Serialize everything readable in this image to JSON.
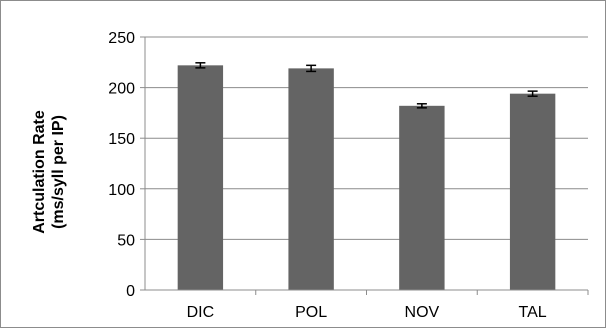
{
  "chart_data": {
    "type": "bar",
    "title": "",
    "xlabel": "",
    "ylabel_line1": "Artculation Rate",
    "ylabel_line2": "(ms/syll per IP)",
    "categories": [
      "DIC",
      "POL",
      "NOV",
      "TAL"
    ],
    "series": [
      {
        "values": [
          222,
          219,
          182,
          194
        ],
        "errors": [
          2.5,
          3,
          2,
          2.5
        ],
        "color": "#646464"
      }
    ],
    "ylim": [
      0,
      250
    ],
    "yticks": [
      0,
      50,
      100,
      150,
      200,
      250
    ],
    "grid": true,
    "legend": "none"
  }
}
